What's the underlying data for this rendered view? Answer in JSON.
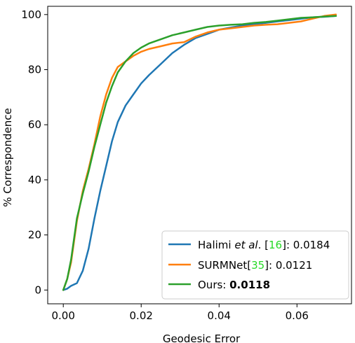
{
  "chart_data": {
    "type": "line",
    "xlabel": "Geodesic Error",
    "ylabel": "% Correspondence",
    "xlim": [
      -0.004,
      0.074
    ],
    "ylim": [
      -5,
      103
    ],
    "xticks": [
      0.0,
      0.02,
      0.04,
      0.06
    ],
    "xtick_labels": [
      "0.00",
      "0.02",
      "0.04",
      "0.06"
    ],
    "yticks": [
      0,
      20,
      40,
      60,
      80,
      100
    ],
    "ytick_labels": [
      "0",
      "20",
      "40",
      "60",
      "80",
      "100"
    ],
    "grid": false,
    "legend_position": "bottom-right",
    "series": [
      {
        "name": "Halimi et al. [16]: 0.0184",
        "color": "#1f77b4",
        "x": [
          0.0,
          0.001,
          0.002,
          0.0035,
          0.005,
          0.0065,
          0.008,
          0.0095,
          0.011,
          0.0125,
          0.014,
          0.016,
          0.018,
          0.02,
          0.022,
          0.025,
          0.028,
          0.031,
          0.034,
          0.037,
          0.04,
          0.043,
          0.046,
          0.049,
          0.052,
          0.055,
          0.058,
          0.061,
          0.064,
          0.067,
          0.07
        ],
        "y": [
          0,
          0.5,
          1.5,
          2.5,
          7,
          15,
          26,
          36,
          45,
          54,
          61,
          67,
          71,
          75,
          78,
          82,
          86,
          89,
          91.5,
          93,
          94.5,
          95.3,
          96,
          96.5,
          97,
          97.5,
          98,
          98.5,
          99,
          99.2,
          99.5
        ]
      },
      {
        "name": "SURMNet[35]: 0.0121",
        "color": "#ff7f0e",
        "x": [
          0.0,
          0.001,
          0.002,
          0.0035,
          0.005,
          0.0065,
          0.008,
          0.0095,
          0.011,
          0.0125,
          0.014,
          0.016,
          0.018,
          0.02,
          0.022,
          0.025,
          0.028,
          0.031,
          0.034,
          0.037,
          0.04,
          0.043,
          0.046,
          0.049,
          0.052,
          0.055,
          0.058,
          0.061,
          0.064,
          0.067,
          0.07
        ],
        "y": [
          0,
          4,
          10,
          25,
          36,
          44,
          53,
          63,
          71,
          77,
          81,
          83,
          85,
          86.5,
          87.5,
          88.5,
          89.5,
          90,
          92,
          93.5,
          94.5,
          95,
          95.5,
          96,
          96.3,
          96.5,
          97,
          97.5,
          98.5,
          99.5,
          100
        ]
      },
      {
        "name": "Ours: 0.0118",
        "color": "#2ca02c",
        "x": [
          0.0,
          0.001,
          0.002,
          0.0035,
          0.005,
          0.0065,
          0.008,
          0.0095,
          0.011,
          0.0125,
          0.014,
          0.016,
          0.018,
          0.02,
          0.022,
          0.025,
          0.028,
          0.031,
          0.034,
          0.037,
          0.04,
          0.043,
          0.046,
          0.049,
          0.052,
          0.055,
          0.058,
          0.061,
          0.064,
          0.067,
          0.07
        ],
        "y": [
          0,
          4,
          11,
          26,
          35,
          43,
          52,
          60,
          68,
          74,
          79,
          83,
          86,
          88,
          89.5,
          91,
          92.5,
          93.5,
          94.5,
          95.5,
          96,
          96.3,
          96.5,
          97,
          97.3,
          97.8,
          98.3,
          98.8,
          99,
          99.3,
          99.5
        ]
      }
    ]
  },
  "legend": {
    "halimi": {
      "prefix": "Halimi ",
      "italic": "et al",
      "dot": ". [",
      "ref": "16",
      "suffix": "]: 0.0184"
    },
    "surmnet": {
      "prefix": "SURMNet[",
      "ref": "35",
      "suffix": "]: 0.0121"
    },
    "ours": {
      "prefix": "Ours: ",
      "value": "0.0118"
    }
  }
}
